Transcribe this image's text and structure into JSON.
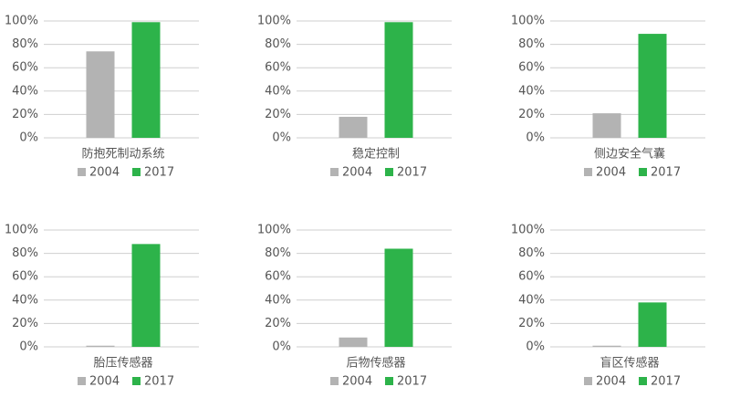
{
  "chart_data": [
    {
      "type": "bar",
      "categories": [
        "防抱死制动系统"
      ],
      "series": [
        {
          "name": "2004",
          "color": "#b3b3b3",
          "values": [
            74
          ]
        },
        {
          "name": "2017",
          "color": "#2db34a",
          "values": [
            99
          ]
        }
      ],
      "ylim": [
        0,
        100
      ],
      "yticks": [
        {
          "value": 0,
          "label": "0%"
        },
        {
          "value": 20,
          "label": "20%"
        },
        {
          "value": 40,
          "label": "40%"
        },
        {
          "value": 60,
          "label": "60%"
        },
        {
          "value": 80,
          "label": "80%"
        },
        {
          "value": 100,
          "label": "100%"
        }
      ],
      "grid": true
    },
    {
      "type": "bar",
      "categories": [
        "稳定控制"
      ],
      "series": [
        {
          "name": "2004",
          "color": "#b3b3b3",
          "values": [
            18
          ]
        },
        {
          "name": "2017",
          "color": "#2db34a",
          "values": [
            99
          ]
        }
      ],
      "ylim": [
        0,
        100
      ],
      "yticks": [
        {
          "value": 0,
          "label": "0%"
        },
        {
          "value": 20,
          "label": "20%"
        },
        {
          "value": 40,
          "label": "40%"
        },
        {
          "value": 60,
          "label": "60%"
        },
        {
          "value": 80,
          "label": "80%"
        },
        {
          "value": 100,
          "label": "100%"
        }
      ],
      "grid": true
    },
    {
      "type": "bar",
      "categories": [
        "侧边安全气囊"
      ],
      "series": [
        {
          "name": "2004",
          "color": "#b3b3b3",
          "values": [
            21
          ]
        },
        {
          "name": "2017",
          "color": "#2db34a",
          "values": [
            89
          ]
        }
      ],
      "ylim": [
        0,
        100
      ],
      "yticks": [
        {
          "value": 0,
          "label": "0%"
        },
        {
          "value": 20,
          "label": "20%"
        },
        {
          "value": 40,
          "label": "40%"
        },
        {
          "value": 60,
          "label": "60%"
        },
        {
          "value": 80,
          "label": "80%"
        },
        {
          "value": 100,
          "label": "100%"
        }
      ],
      "grid": true
    },
    {
      "type": "bar",
      "categories": [
        "胎压传感器"
      ],
      "series": [
        {
          "name": "2004",
          "color": "#b3b3b3",
          "values": [
            1
          ]
        },
        {
          "name": "2017",
          "color": "#2db34a",
          "values": [
            88
          ]
        }
      ],
      "ylim": [
        0,
        100
      ],
      "yticks": [
        {
          "value": 0,
          "label": "0%"
        },
        {
          "value": 20,
          "label": "20%"
        },
        {
          "value": 40,
          "label": "40%"
        },
        {
          "value": 60,
          "label": "60%"
        },
        {
          "value": 80,
          "label": "80%"
        },
        {
          "value": 100,
          "label": "100%"
        }
      ],
      "grid": true
    },
    {
      "type": "bar",
      "categories": [
        "后物传感器"
      ],
      "series": [
        {
          "name": "2004",
          "color": "#b3b3b3",
          "values": [
            8
          ]
        },
        {
          "name": "2017",
          "color": "#2db34a",
          "values": [
            84
          ]
        }
      ],
      "ylim": [
        0,
        100
      ],
      "yticks": [
        {
          "value": 0,
          "label": "0%"
        },
        {
          "value": 20,
          "label": "20%"
        },
        {
          "value": 40,
          "label": "40%"
        },
        {
          "value": 60,
          "label": "60%"
        },
        {
          "value": 80,
          "label": "80%"
        },
        {
          "value": 100,
          "label": "100%"
        }
      ],
      "grid": true
    },
    {
      "type": "bar",
      "categories": [
        "盲区传感器"
      ],
      "series": [
        {
          "name": "2004",
          "color": "#b3b3b3",
          "values": [
            1
          ]
        },
        {
          "name": "2017",
          "color": "#2db34a",
          "values": [
            38
          ]
        }
      ],
      "ylim": [
        0,
        100
      ],
      "yticks": [
        {
          "value": 0,
          "label": "0%"
        },
        {
          "value": 20,
          "label": "20%"
        },
        {
          "value": 40,
          "label": "40%"
        },
        {
          "value": 60,
          "label": "60%"
        },
        {
          "value": 80,
          "label": "80%"
        },
        {
          "value": 100,
          "label": "100%"
        }
      ],
      "grid": true
    }
  ]
}
